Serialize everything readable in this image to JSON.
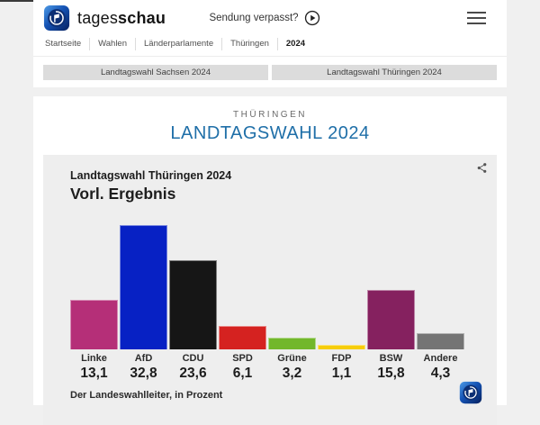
{
  "header": {
    "brand_regular": "tages",
    "brand_bold": "schau",
    "sendung_verpasst": "Sendung verpasst?"
  },
  "breadcrumb": [
    "Startseite",
    "Wahlen",
    "Länderparlamente",
    "Thüringen",
    "2024"
  ],
  "nav_buttons": {
    "sachsen": "Landtagswahl Sachsen 2024",
    "thueringen": "Landtagswahl Thüringen 2024"
  },
  "page": {
    "kicker": "THÜRINGEN",
    "title": "LANDTAGSWAHL 2024"
  },
  "chart_data": {
    "type": "bar",
    "title": "Landtagswahl Thüringen 2024",
    "subtitle": "Vorl. Ergebnis",
    "source": "Der Landeswahlleiter, in Prozent",
    "ylabel": "Prozent",
    "ylim": [
      0,
      35
    ],
    "grid": false,
    "legend": false,
    "categories": [
      "Linke",
      "AfD",
      "CDU",
      "SPD",
      "Grüne",
      "FDP",
      "BSW",
      "Andere"
    ],
    "values": [
      13.1,
      32.8,
      23.6,
      6.1,
      3.2,
      1.1,
      15.8,
      4.3
    ],
    "value_labels": [
      "13,1",
      "32,8",
      "23,6",
      "6,1",
      "3,2",
      "1,1",
      "15,8",
      "4,3"
    ],
    "bar_colors": [
      "#b52f78",
      "#0721c4",
      "#161616",
      "#d52220",
      "#72b72b",
      "#f6cd0a",
      "#85215f",
      "#747474"
    ]
  },
  "theme": {
    "title_blue": "#1f6fa8",
    "panel_bg": "#eeeeee",
    "page_bg": "#f0f0f0",
    "button_gray": "#dcdcdc"
  }
}
